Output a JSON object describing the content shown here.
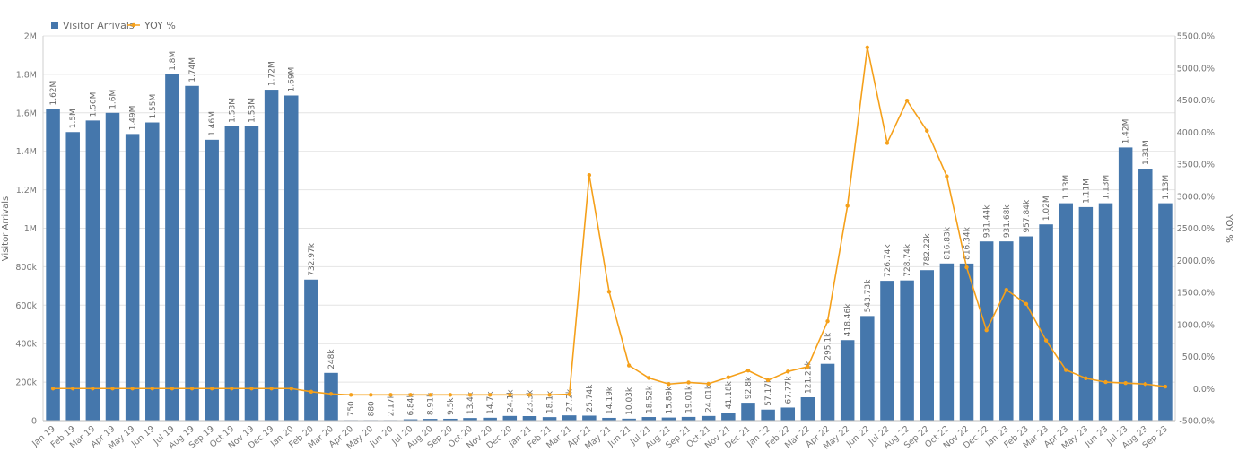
{
  "chart_data": {
    "type": "bar+line",
    "title": "",
    "xlabel": "",
    "ylabel": "Visitor Arrivals",
    "y2label": "YOY %",
    "ylim": [
      0,
      2000000
    ],
    "y2lim": [
      -500,
      5500
    ],
    "yticks": [
      "0",
      "200k",
      "400k",
      "600k",
      "800k",
      "1M",
      "1.2M",
      "1.4M",
      "1.6M",
      "1.8M",
      "2M"
    ],
    "y2ticks": [
      "-500.0%",
      "0.0%",
      "500.0%",
      "1000.0%",
      "1500.0%",
      "2000.0%",
      "2500.0%",
      "3000.0%",
      "3500.0%",
      "4000.0%",
      "4500.0%",
      "5000.0%",
      "5500.0%"
    ],
    "legend": {
      "position": "top-left",
      "items": [
        "Visitor Arrivals",
        "YOY %"
      ]
    },
    "colors": {
      "bars": "#4577ac",
      "line": "#f5a01a"
    },
    "categories": [
      "Jan 19",
      "Feb 19",
      "Mar 19",
      "Apr 19",
      "May 19",
      "Jun 19",
      "Jul 19",
      "Aug 19",
      "Sep 19",
      "Oct 19",
      "Nov 19",
      "Dec 19",
      "Jan 20",
      "Feb 20",
      "Mar 20",
      "Apr 20",
      "May 20",
      "Jun 20",
      "Jul 20",
      "Aug 20",
      "Sep 20",
      "Oct 20",
      "Nov 20",
      "Dec 20",
      "Jan 21",
      "Feb 21",
      "Mar 21",
      "Apr 21",
      "May 21",
      "Jun 21",
      "Jul 21",
      "Aug 21",
      "Sep 21",
      "Oct 21",
      "Nov 21",
      "Dec 21",
      "Jan 22",
      "Feb 22",
      "Mar 22",
      "Apr 22",
      "May 22",
      "Jun 22",
      "Jul 22",
      "Aug 22",
      "Sep 22",
      "Oct 22",
      "Nov 22",
      "Dec 22",
      "Jan 23",
      "Feb 23",
      "Mar 23",
      "Apr 23",
      "May 23",
      "Jun 23",
      "Jul 23",
      "Aug 23",
      "Sep 23"
    ],
    "series": [
      {
        "name": "Visitor Arrivals",
        "type": "bar",
        "values": [
          1620000,
          1500000,
          1560000,
          1600000,
          1490000,
          1550000,
          1800000,
          1740000,
          1460000,
          1530000,
          1530000,
          1720000,
          1690000,
          732970,
          248000,
          750,
          880,
          2170,
          6840,
          8910,
          9500,
          13400,
          14700,
          24100,
          23300,
          18100,
          27200,
          25740,
          14190,
          10030,
          18520,
          15890,
          19010,
          24010,
          41180,
          92800,
          57170,
          67770,
          121210,
          295100,
          418460,
          543730,
          726740,
          728740,
          782220,
          816830,
          816340,
          931440,
          931680,
          957840,
          1020000,
          1130000,
          1110000,
          1130000,
          1420000,
          1310000,
          1130000
        ],
        "labels": [
          "1.62M",
          "1.5M",
          "1.56M",
          "1.6M",
          "1.49M",
          "1.55M",
          "1.8M",
          "1.74M",
          "1.46M",
          "1.53M",
          "1.53M",
          "1.72M",
          "1.69M",
          "732.97k",
          "248k",
          "750",
          "880",
          "2.17k",
          "6.84k",
          "8.91k",
          "9.5k",
          "13.4k",
          "14.7k",
          "24.1k",
          "23.3k",
          "18.1k",
          "27.2k",
          "25.74k",
          "14.19k",
          "10.03k",
          "18.52k",
          "15.89k",
          "19.01k",
          "24.01k",
          "41.18k",
          "92.8k",
          "57.17k",
          "67.77k",
          "121.21k",
          "295.1k",
          "418.46k",
          "543.73k",
          "726.74k",
          "728.74k",
          "782.22k",
          "816.83k",
          "816.34k",
          "931.44k",
          "931.68k",
          "957.84k",
          "1.02M",
          "1.13M",
          "1.11M",
          "1.13M",
          "1.42M",
          "1.31M",
          "1.13M"
        ]
      },
      {
        "name": "YOY %",
        "type": "line",
        "values": [
          0,
          0,
          0,
          0,
          0,
          0,
          0,
          0,
          0,
          0,
          0,
          0,
          0,
          -50,
          -85,
          -99,
          -99,
          -99,
          -99,
          -99,
          -99,
          -99,
          -99,
          -99,
          -99,
          -99,
          -90,
          3330,
          1510,
          360,
          165,
          70,
          95,
          75,
          175,
          280,
          130,
          265,
          340,
          1050,
          2850,
          5320,
          3830,
          4490,
          4020,
          3310,
          1890,
          910,
          1540,
          1320,
          750,
          290,
          160,
          100,
          85,
          70,
          30
        ]
      }
    ]
  }
}
